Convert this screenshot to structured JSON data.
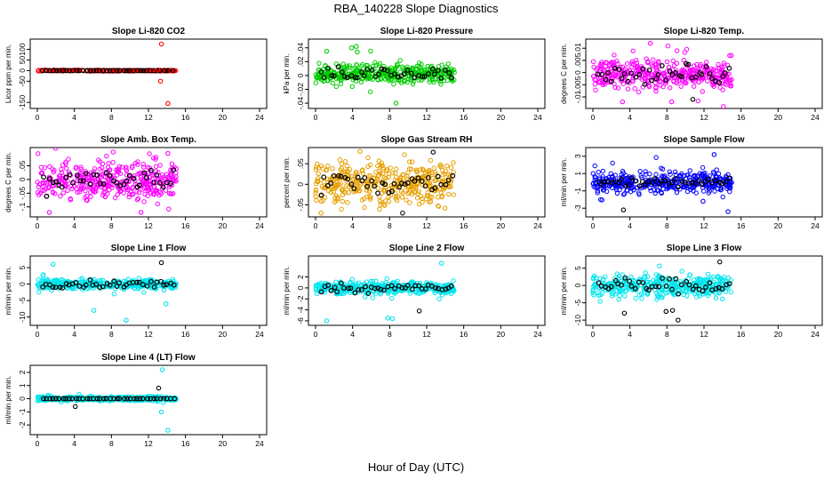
{
  "figure": {
    "title": "RBA_140228  Slope Diagnostics",
    "xlabel": "Hour of Day (UTC)"
  },
  "chart_data": [
    {
      "type": "scatter",
      "title": "Slope Li-820 CO2",
      "ylabel": "Licor ppm per min.",
      "color": "#ff0000",
      "xlim": [
        0,
        24
      ],
      "xticks": [
        0,
        4,
        8,
        12,
        16,
        20,
        24
      ],
      "ylim": [
        -170,
        140
      ],
      "yticks": [
        -150,
        -50,
        0,
        50,
        100
      ],
      "x_range": [
        0,
        15
      ],
      "core": [
        0,
        0
      ],
      "spread": 0.4,
      "outliers": [
        [
          13.4,
          125
        ],
        [
          13.3,
          -50
        ],
        [
          14.1,
          -155
        ],
        [
          13.0,
          3
        ],
        [
          14.4,
          0
        ]
      ]
    },
    {
      "type": "scatter",
      "title": "Slope Li-820 Pressure",
      "ylabel": "kPa per min.",
      "color": "#00cc00",
      "xlim": [
        0,
        24
      ],
      "xticks": [
        0,
        4,
        8,
        12,
        16,
        20,
        24
      ],
      "ylim": [
        -0.045,
        0.05
      ],
      "yticks": [
        -0.04,
        -0.02,
        0,
        0.02,
        0.04
      ],
      "x_range": [
        0,
        15
      ],
      "core": [
        -0.015,
        0.02
      ],
      "spread": 0.45,
      "outliers": [
        [
          4.4,
          0.042
        ],
        [
          3.9,
          0.04
        ],
        [
          1.2,
          0.035
        ],
        [
          8.7,
          -0.04
        ],
        [
          4.5,
          0.034
        ]
      ]
    },
    {
      "type": "scatter",
      "title": "Slope Li-820 Temp.",
      "ylabel": "degrees C per min.",
      "color": "#ff00ff",
      "xlim": [
        0,
        24
      ],
      "xticks": [
        0,
        4,
        8,
        12,
        16,
        20,
        24
      ],
      "ylim": [
        -0.014,
        0.013
      ],
      "yticks": [
        -0.01,
        -0.005,
        0,
        0.005,
        0.01
      ],
      "x_range": [
        0,
        15
      ],
      "core": [
        -0.008,
        0.007
      ],
      "spread": 0.55,
      "outliers": [
        [
          6.2,
          0.012
        ],
        [
          8.5,
          -0.012
        ],
        [
          10.8,
          -0.011
        ],
        [
          3.2,
          -0.012
        ]
      ]
    },
    {
      "type": "scatter",
      "title": "Slope Amb. Box Temp.",
      "ylabel": "degrees C per min.",
      "color": "#ff00ff",
      "xlim": [
        0,
        24
      ],
      "xticks": [
        0,
        4,
        8,
        12,
        16,
        20,
        24
      ],
      "ylim": [
        -0.13,
        0.11
      ],
      "yticks": [
        -0.1,
        -0.05,
        0,
        0.05
      ],
      "x_range": [
        0,
        15
      ],
      "core": [
        -0.09,
        0.08
      ],
      "spread": 0.6,
      "outliers": [
        [
          1.3,
          -0.12
        ],
        [
          8.2,
          0.1
        ],
        [
          14.1,
          0.095
        ],
        [
          11.2,
          -0.12
        ]
      ]
    },
    {
      "type": "scatter",
      "title": "Slope Gas Stream RH",
      "ylabel": "percent per min.",
      "color": "#e69f00",
      "xlim": [
        0,
        24
      ],
      "xticks": [
        0,
        4,
        8,
        12,
        16,
        20,
        24
      ],
      "ylim": [
        -0.075,
        0.085
      ],
      "yticks": [
        -0.05,
        0,
        0.05
      ],
      "x_range": [
        0,
        15
      ],
      "core": [
        -0.06,
        0.07
      ],
      "spread": 0.6,
      "outliers": [
        [
          0.6,
          -0.07
        ],
        [
          4.8,
          0.08
        ],
        [
          12.7,
          0.078
        ],
        [
          9.4,
          -0.07
        ]
      ]
    },
    {
      "type": "scatter",
      "title": "Slope Sample Flow",
      "ylabel": "ml/min per min.",
      "color": "#0000ff",
      "xlim": [
        0,
        24
      ],
      "xticks": [
        0,
        4,
        8,
        12,
        16,
        20,
        24
      ],
      "ylim": [
        -3.8,
        3.8
      ],
      "yticks": [
        -3,
        -1,
        1,
        3
      ],
      "x_range": [
        0,
        15
      ],
      "core": [
        -1.5,
        1.5
      ],
      "spread": 0.45,
      "outliers": [
        [
          3.3,
          -3.2
        ],
        [
          13.1,
          3.2
        ],
        [
          14.6,
          -3.4
        ],
        [
          11.9,
          -2.2
        ]
      ]
    },
    {
      "type": "scatter",
      "title": "Slope Line 1 Flow",
      "ylabel": "ml/min per min.",
      "color": "#00e5ee",
      "xlim": [
        0,
        24
      ],
      "xticks": [
        0,
        4,
        8,
        12,
        16,
        20,
        24
      ],
      "ylim": [
        -12,
        8
      ],
      "yticks": [
        -10,
        -5,
        0,
        5
      ],
      "x_range": [
        0,
        15
      ],
      "core": [
        -2,
        2
      ],
      "spread": 0.5,
      "outliers": [
        [
          13.4,
          6.5
        ],
        [
          9.6,
          -11
        ],
        [
          1.7,
          6
        ],
        [
          6.1,
          -8
        ],
        [
          13.9,
          -6
        ]
      ]
    },
    {
      "type": "scatter",
      "title": "Slope Line 2 Flow",
      "ylabel": "ml/min per min.",
      "color": "#00e5ee",
      "xlim": [
        0,
        24
      ],
      "xticks": [
        0,
        4,
        8,
        12,
        16,
        20,
        24
      ],
      "ylim": [
        -6.5,
        5.5
      ],
      "yticks": [
        -6,
        -4,
        -2,
        0,
        2
      ],
      "x_range": [
        0,
        15
      ],
      "core": [
        -1.5,
        1.5
      ],
      "spread": 0.5,
      "outliers": [
        [
          13.6,
          4.5
        ],
        [
          7.8,
          -5.5
        ],
        [
          8.3,
          -5.6
        ],
        [
          1.2,
          -6
        ],
        [
          11.2,
          -4.2
        ]
      ]
    },
    {
      "type": "scatter",
      "title": "Slope Line 3 Flow",
      "ylabel": "ml/min per min.",
      "color": "#00e5ee",
      "xlim": [
        0,
        24
      ],
      "xticks": [
        0,
        4,
        8,
        12,
        16,
        20,
        24
      ],
      "ylim": [
        -11,
        8
      ],
      "yticks": [
        -10,
        -5,
        0,
        5
      ],
      "x_range": [
        0,
        15
      ],
      "core": [
        -4,
        4
      ],
      "spread": 0.5,
      "outliers": [
        [
          13.7,
          6.8
        ],
        [
          7.9,
          -7.5
        ],
        [
          8.6,
          -7.2
        ],
        [
          3.4,
          -8
        ],
        [
          9.2,
          -10
        ]
      ]
    },
    {
      "type": "scatter",
      "title": "Slope Line 4 (LT) Flow",
      "ylabel": "ml/min per min.",
      "color": "#00e5ee",
      "xlim": [
        0,
        24
      ],
      "xticks": [
        0,
        4,
        8,
        12,
        16,
        20,
        24
      ],
      "ylim": [
        -2.6,
        2.4
      ],
      "yticks": [
        -2,
        -1,
        0,
        1,
        2
      ],
      "x_range": [
        0,
        15
      ],
      "core": [
        -0.2,
        0.2
      ],
      "spread": 0.3,
      "outliers": [
        [
          13.5,
          2.2
        ],
        [
          13.4,
          -1
        ],
        [
          14.1,
          -2.4
        ],
        [
          13.1,
          0.8
        ],
        [
          4.1,
          -0.6
        ],
        [
          13.6,
          -0.3
        ]
      ]
    }
  ]
}
